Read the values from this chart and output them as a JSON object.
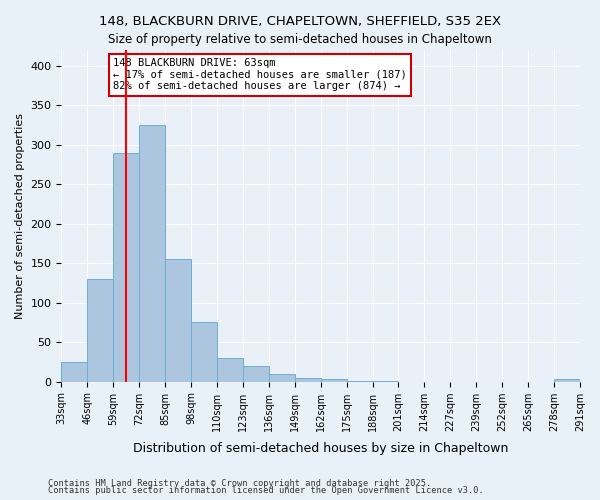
{
  "title1": "148, BLACKBURN DRIVE, CHAPELTOWN, SHEFFIELD, S35 2EX",
  "title2": "Size of property relative to semi-detached houses in Chapeltown",
  "xlabel": "Distribution of semi-detached houses by size in Chapeltown",
  "ylabel": "Number of semi-detached properties",
  "bar_values": [
    25,
    130,
    290,
    325,
    155,
    75,
    30,
    20,
    10,
    5,
    3,
    1,
    1,
    0,
    0,
    0,
    0,
    0,
    0,
    3
  ],
  "x_labels": [
    "33sqm",
    "46sqm",
    "59sqm",
    "72sqm",
    "85sqm",
    "98sqm",
    "110sqm",
    "123sqm",
    "136sqm",
    "149sqm",
    "162sqm",
    "175sqm",
    "188sqm",
    "201sqm",
    "214sqm",
    "227sqm",
    "239sqm",
    "252sqm",
    "265sqm",
    "278sqm",
    "291sqm"
  ],
  "bar_color": "#adc6e0",
  "bar_edge_color": "#6aaed6",
  "red_line_x": 2,
  "annotation_title": "148 BLACKBURN DRIVE: 63sqm",
  "annotation_line1": "← 17% of semi-detached houses are smaller (187)",
  "annotation_line2": "82% of semi-detached houses are larger (874) →",
  "annotation_box_color": "#ffffff",
  "annotation_box_edge": "#cc0000",
  "footer1": "Contains HM Land Registry data © Crown copyright and database right 2025.",
  "footer2": "Contains public sector information licensed under the Open Government Licence v3.0.",
  "ylim": [
    0,
    420
  ],
  "yticks": [
    0,
    50,
    100,
    150,
    200,
    250,
    300,
    350,
    400
  ],
  "bg_color": "#e8f0f8",
  "plot_bg_color": "#eaf0f8"
}
